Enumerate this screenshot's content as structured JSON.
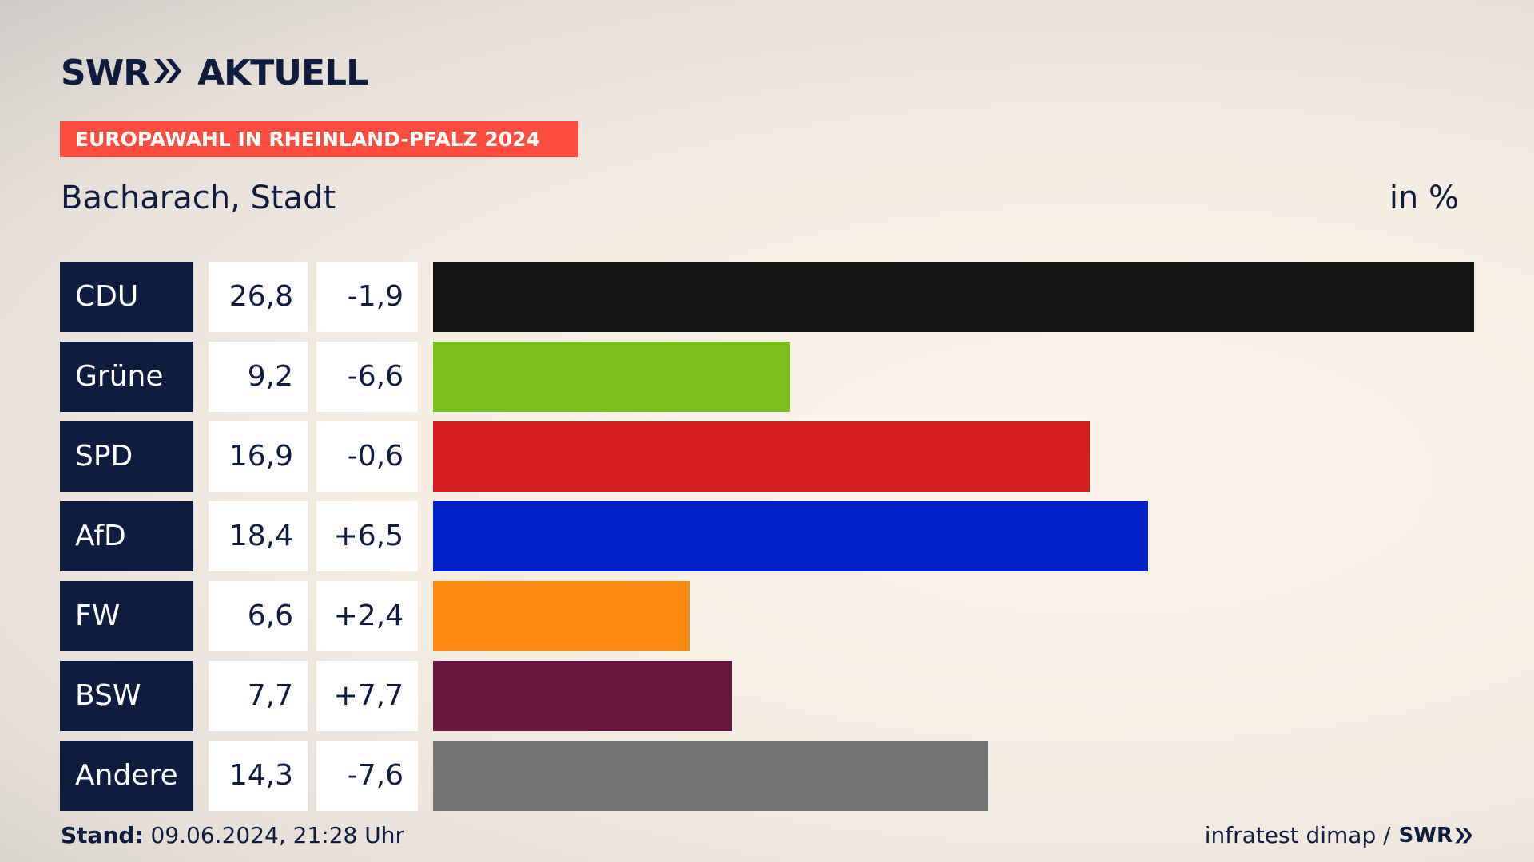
{
  "header": {
    "logo_left": "SWR",
    "logo_right": "AKTUELL",
    "banner": "EUROPAWAHL IN RHEINLAND-PFALZ 2024",
    "subtitle": "Bacharach, Stadt",
    "unit": "in %"
  },
  "chart_data": {
    "type": "bar",
    "orientation": "horizontal",
    "categories": [
      "CDU",
      "Grüne",
      "SPD",
      "AfD",
      "FW",
      "BSW",
      "Andere"
    ],
    "values": [
      26.8,
      9.2,
      16.9,
      18.4,
      6.6,
      7.7,
      14.3
    ],
    "value_labels": [
      "26,8",
      "9,2",
      "16,9",
      "18,4",
      "6,6",
      "7,7",
      "14,3"
    ],
    "diff_labels": [
      "-1,9",
      "-6,6",
      "-0,6",
      "+6,5",
      "+2,4",
      "+7,7",
      "-7,6"
    ],
    "colors": [
      "#141414",
      "#7bbf1c",
      "#d61e1e",
      "#0021c8",
      "#fe8a12",
      "#67183e",
      "#727375"
    ],
    "xlim": [
      0,
      26.8
    ],
    "grid": false,
    "legend": "none"
  },
  "footer": {
    "stand_label": "Stand:",
    "stand_value": " 09.06.2024, 21:28 Uhr",
    "source": "infratest dimap /",
    "source_brand": "SWR"
  }
}
